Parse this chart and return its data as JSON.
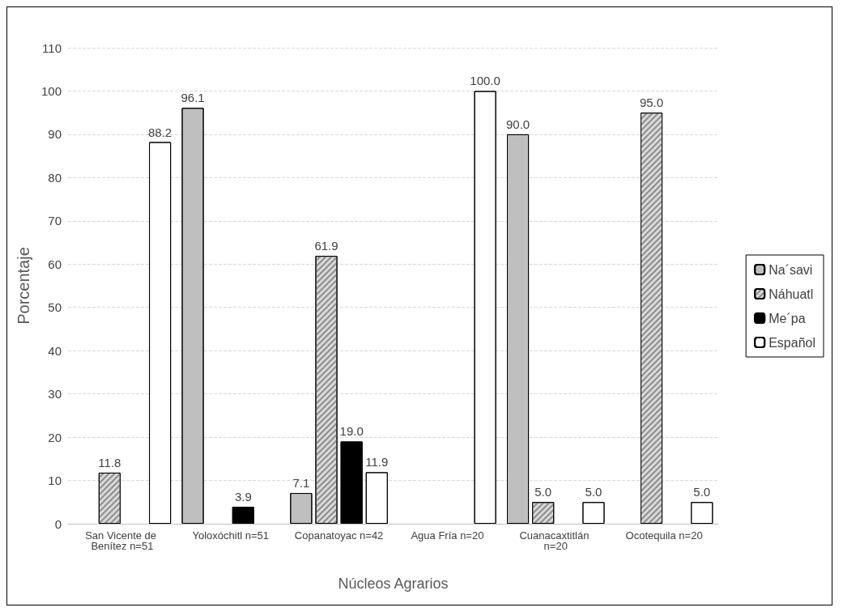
{
  "chart_data": {
    "type": "bar",
    "xlabel": "Núcleos Agrarios",
    "ylabel": "Porcentaje",
    "categories": [
      "San Vicente de Benítez n=51",
      "Yoloxóchitl n=51",
      "Copanatoyac n=42",
      "Agua Fría n=20",
      "Cuanacaxtitlán n=20",
      "Ocotequila n=20"
    ],
    "series": [
      {
        "name": "Na´savi",
        "color": "#bfbfbf",
        "values": [
          null,
          96.1,
          7.1,
          null,
          90,
          null
        ],
        "value_labels": [
          null,
          "96.1",
          "7.1",
          null,
          "90.0",
          null
        ]
      },
      {
        "name": "Náhuatl",
        "color": "#d9d9d9",
        "values": [
          11.8,
          null,
          61.9,
          null,
          5,
          95
        ],
        "value_labels": [
          "11.8",
          null,
          "61.9",
          null,
          "5.0",
          "95.0"
        ]
      },
      {
        "name": "Me´pa",
        "color": "#000000",
        "values": [
          null,
          3.9,
          19,
          null,
          null,
          null
        ],
        "value_labels": [
          null,
          "3.9",
          "19.0",
          null,
          null,
          null
        ]
      },
      {
        "name": "Español",
        "color": "#ffffff",
        "values": [
          88.2,
          null,
          11.9,
          100,
          5,
          5
        ],
        "value_labels": [
          "88.2",
          null,
          "11.9",
          "100.0",
          "5.0",
          "5.0"
        ]
      }
    ],
    "ylim": [
      0,
      110
    ],
    "yticks": [
      0,
      10,
      20,
      30,
      40,
      50,
      60,
      70,
      80,
      90,
      100,
      110
    ],
    "grid": "y",
    "legend": "right"
  }
}
